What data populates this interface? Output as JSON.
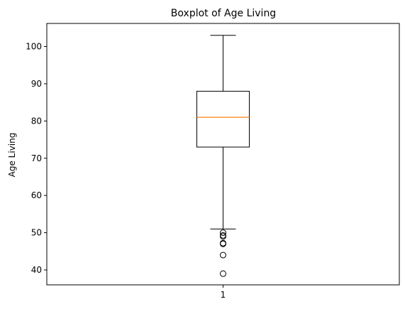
{
  "chart_data": {
    "type": "boxplot",
    "title": "Boxplot of Age Living",
    "xlabel": "",
    "ylabel": "Age Living",
    "ylim": [
      36,
      106.2
    ],
    "yticks": [
      40,
      50,
      60,
      70,
      80,
      90,
      100
    ],
    "grid": false,
    "legend": "none",
    "categories": [
      "1"
    ],
    "boxes": [
      {
        "category": "1",
        "whisker_low": 51,
        "q1": 73,
        "median": 81,
        "q3": 88,
        "whisker_high": 103,
        "outliers": [
          50,
          49.3,
          49,
          47.2,
          47,
          44,
          39
        ]
      }
    ],
    "colors": {
      "box": "#000000",
      "median": "#ff7f0e",
      "outlier": "#000000"
    }
  }
}
